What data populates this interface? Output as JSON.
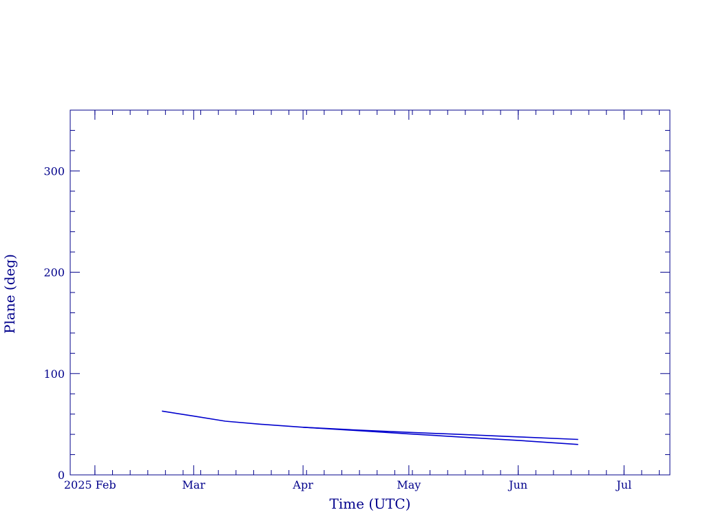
{
  "chart_data": {
    "type": "line",
    "title": "",
    "xlabel": "Time (UTC)",
    "ylabel": "Plane (deg)",
    "ylim": [
      0,
      360
    ],
    "xlim": [
      "2025-01-25",
      "2025-07-14"
    ],
    "grid": false,
    "axis_color": "#00008b",
    "series_color": "#0000cd",
    "x_ticks": [
      {
        "date": "2025-02-01",
        "label": "2025 Feb"
      },
      {
        "date": "2025-03-01",
        "label": "Mar"
      },
      {
        "date": "2025-04-01",
        "label": "Apr"
      },
      {
        "date": "2025-05-01",
        "label": "May"
      },
      {
        "date": "2025-06-01",
        "label": "Jun"
      },
      {
        "date": "2025-07-01",
        "label": "Jul"
      }
    ],
    "y_ticks": [
      0,
      100,
      200,
      300
    ],
    "series": [
      {
        "x": [
          "2025-02-20",
          "2025-03-01",
          "2025-03-10",
          "2025-03-20",
          "2025-04-01",
          "2025-04-15",
          "2025-05-01",
          "2025-05-15",
          "2025-06-01",
          "2025-06-18"
        ],
        "y": [
          63,
          58,
          53,
          50,
          47,
          44.5,
          42,
          40,
          37.5,
          35
        ]
      },
      {
        "x": [
          "2025-04-01",
          "2025-04-15",
          "2025-05-01",
          "2025-05-15",
          "2025-06-01",
          "2025-06-18"
        ],
        "y": [
          47,
          44,
          40.5,
          37.5,
          34,
          30
        ]
      }
    ]
  }
}
